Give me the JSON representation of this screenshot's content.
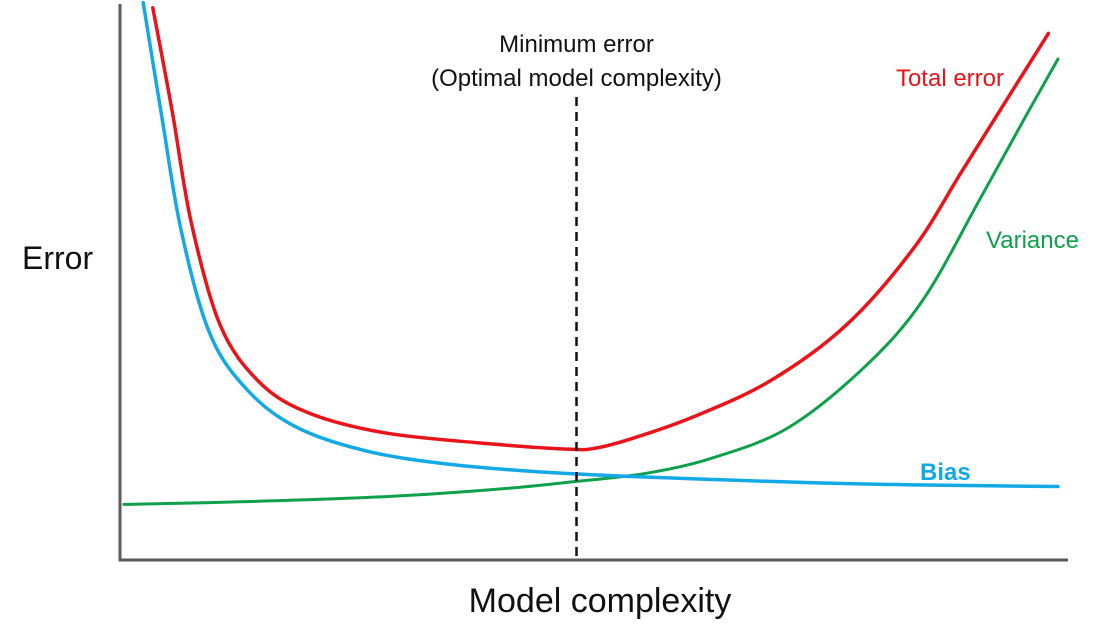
{
  "chart_data": {
    "type": "line",
    "xlabel": "Model complexity",
    "ylabel": "Error",
    "x_range": [
      0,
      1
    ],
    "y_range": [
      0,
      1
    ],
    "ticks": false,
    "grid": false,
    "annotations": [
      {
        "text_line1": "Minimum error",
        "text_line2": "(Optimal model complexity)",
        "x": 0.5,
        "style": "dashed-vertical-line"
      }
    ],
    "series": [
      {
        "name": "Total error",
        "color": "#e8141a",
        "x": [
          0.06,
          0.08,
          0.1,
          0.13,
          0.17,
          0.22,
          0.3,
          0.4,
          0.49,
          0.52,
          0.56,
          0.62,
          0.7,
          0.78,
          0.85,
          0.9,
          0.95,
          0.99
        ],
        "y": [
          1.02,
          0.82,
          0.6,
          0.4,
          0.29,
          0.23,
          0.19,
          0.17,
          0.158,
          0.16,
          0.18,
          0.22,
          0.29,
          0.4,
          0.55,
          0.7,
          0.85,
          0.97
        ]
      },
      {
        "name": "Variance",
        "color": "#0ea04a",
        "x": [
          0.03,
          0.15,
          0.3,
          0.42,
          0.5,
          0.57,
          0.64,
          0.72,
          0.8,
          0.86,
          0.92,
          0.97,
          1.0
        ],
        "y": [
          0.05,
          0.055,
          0.065,
          0.08,
          0.095,
          0.11,
          0.14,
          0.2,
          0.32,
          0.45,
          0.65,
          0.82,
          0.92
        ]
      },
      {
        "name": "Bias",
        "color": "#13a8e6",
        "x": [
          0.05,
          0.07,
          0.09,
          0.12,
          0.16,
          0.21,
          0.28,
          0.36,
          0.45,
          0.55,
          0.65,
          0.75,
          0.85,
          1.0
        ],
        "y": [
          1.03,
          0.8,
          0.58,
          0.38,
          0.27,
          0.2,
          0.155,
          0.13,
          0.115,
          0.105,
          0.098,
          0.092,
          0.088,
          0.085
        ]
      }
    ]
  }
}
